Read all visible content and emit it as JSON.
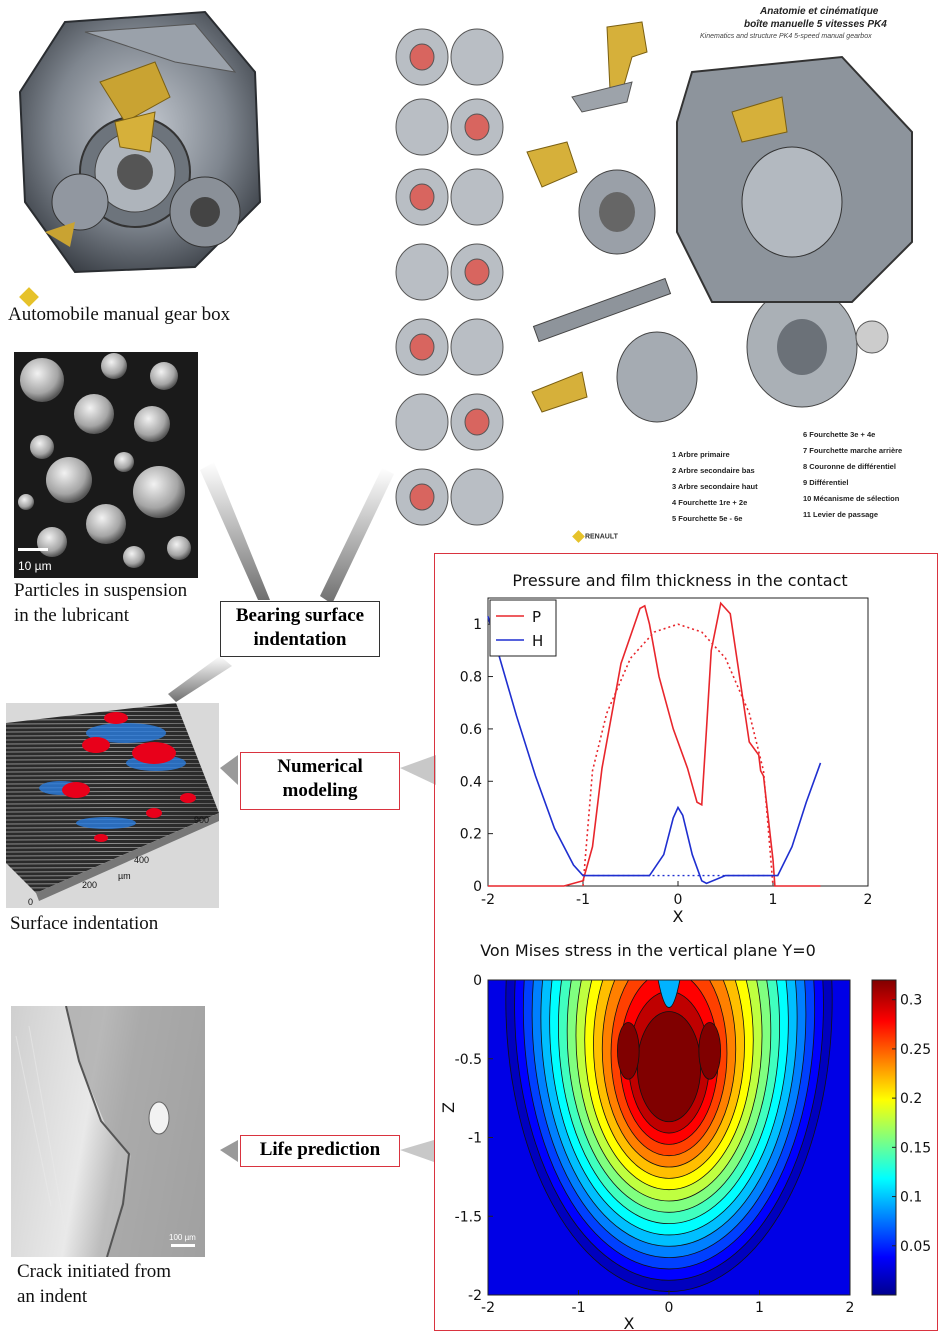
{
  "captions": {
    "gearbox": "Automobile manual gear box",
    "particles_1": "Particles in suspension",
    "particles_2": "in the lubricant",
    "indentation": "Surface indentation",
    "crack_1": "Crack initiated from",
    "crack_2": "an indent"
  },
  "boxes": {
    "bearing_1": "Bearing surface",
    "bearing_2": "indentation",
    "numerical_1": "Numerical",
    "numerical_2": "modeling",
    "life": "Life prediction"
  },
  "exploded": {
    "title_1": "Anatomie et cinématique",
    "title_2": "boîte manuelle 5 vitesses PK4",
    "subtitle": "Kinematics and structure PK4 5-speed manual gearbox",
    "brand": "RENAULT",
    "legend": [
      "1 Arbre primaire",
      "2 Arbre secondaire bas",
      "3 Arbre secondaire haut",
      "4 Fourchette 1re + 2e",
      "5 Fourchette 5e - 6e",
      "6 Fourchette 3e + 4e",
      "7 Fourchette marche arrière",
      "8 Couronne de différentiel",
      "9 Différentiel",
      "10 Mécanisme de sélection",
      "11 Levier de passage"
    ]
  },
  "surface_axis": [
    "400",
    "200",
    "µm",
    "0",
    "900"
  ],
  "scale_label": "10 µm",
  "crack_scale": "100 µm",
  "chart_data": [
    {
      "type": "line",
      "title": "Pressure and film thickness in the contact",
      "xlabel": "X",
      "ylabel": "",
      "xlim": [
        -2,
        2
      ],
      "ylim": [
        0,
        1.1
      ],
      "xticks": [
        "-2",
        "-1",
        "0",
        "1",
        "2"
      ],
      "yticks": [
        "0",
        "0.2",
        "0.4",
        "0.6",
        "0.8",
        "1"
      ],
      "legend": [
        "P",
        "H"
      ],
      "legend_position": "top-left",
      "colors": {
        "P": "#e8262c",
        "H": "#1f2fd0"
      },
      "series": [
        {
          "name": "P",
          "x": [
            -2,
            -1.2,
            -1.0,
            -0.9,
            -0.8,
            -0.6,
            -0.4,
            -0.35,
            -0.3,
            -0.2,
            -0.05,
            0.1,
            0.2,
            0.25,
            0.3,
            0.35,
            0.45,
            0.55,
            0.75,
            0.85,
            0.87,
            0.9,
            1.0,
            1.02,
            1.5
          ],
          "y": [
            0,
            0,
            0.02,
            0.15,
            0.45,
            0.85,
            1.06,
            1.07,
            1.0,
            0.8,
            0.6,
            0.45,
            0.32,
            0.31,
            0.6,
            0.9,
            1.08,
            1.04,
            0.55,
            0.5,
            0.44,
            0.42,
            0.1,
            0,
            0
          ]
        },
        {
          "name": "P (Hertz)",
          "x": [
            -1,
            -0.9,
            -0.75,
            -0.5,
            -0.25,
            0,
            0.25,
            0.5,
            0.75,
            0.9,
            1
          ],
          "y": [
            0,
            0.44,
            0.66,
            0.87,
            0.97,
            1.0,
            0.97,
            0.87,
            0.66,
            0.44,
            0
          ]
        },
        {
          "name": "H",
          "x": [
            -2,
            -1.9,
            -1.7,
            -1.5,
            -1.3,
            -1.1,
            -1.0,
            -0.9,
            -0.6,
            -0.3,
            -0.15,
            -0.05,
            0,
            0.05,
            0.15,
            0.25,
            0.3,
            0.5,
            0.8,
            0.95,
            1.05,
            1.2,
            1.35,
            1.5
          ],
          "y": [
            1.03,
            0.9,
            0.65,
            0.42,
            0.22,
            0.08,
            0.04,
            0.04,
            0.04,
            0.04,
            0.12,
            0.26,
            0.3,
            0.27,
            0.12,
            0.02,
            0.01,
            0.04,
            0.04,
            0.04,
            0.04,
            0.15,
            0.32,
            0.47
          ]
        }
      ]
    },
    {
      "type": "heatmap",
      "title": "Von Mises stress in the vertical plane Y=0",
      "xlabel": "X",
      "ylabel": "Z",
      "xlim": [
        -2,
        2
      ],
      "ylim": [
        -2,
        0
      ],
      "xticks": [
        "-2",
        "-1",
        "0",
        "1",
        "2"
      ],
      "yticks": [
        "0",
        "-0.5",
        "-1",
        "-1.5",
        "-2"
      ],
      "colorbar_ticks": [
        "0.3",
        "0.25",
        "0.2",
        "0.15",
        "0.1",
        "0.05"
      ],
      "colorbar_range": [
        0,
        0.32
      ],
      "peak_value": 0.32
    }
  ]
}
